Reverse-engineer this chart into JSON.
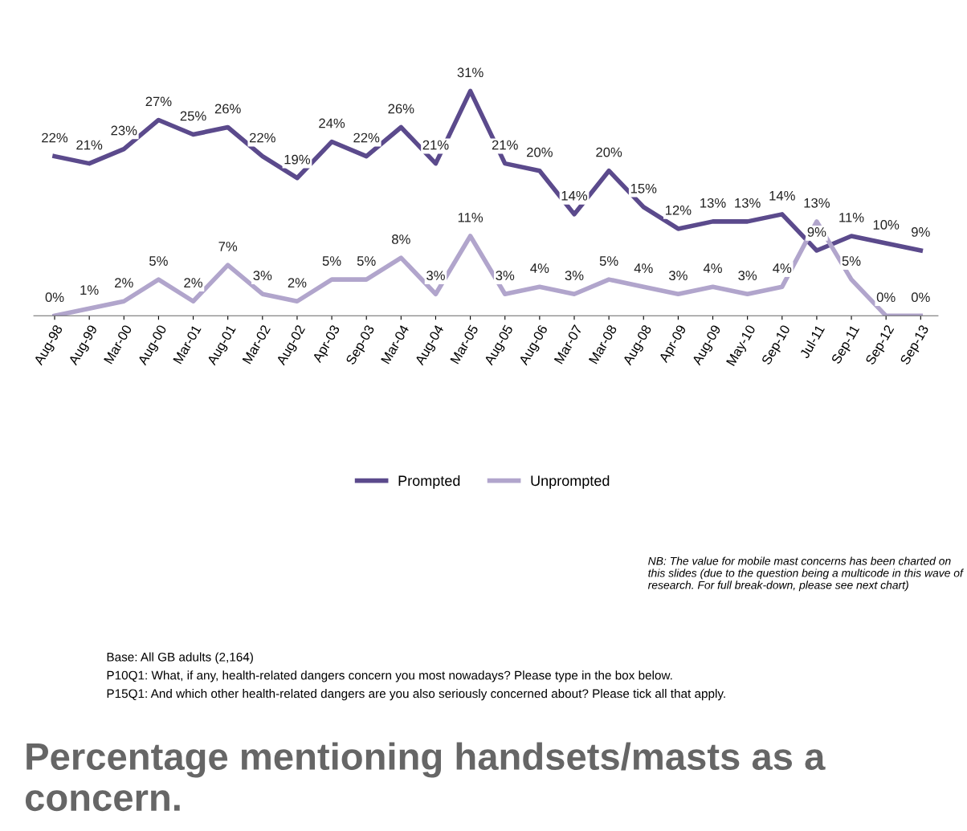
{
  "chart_data": {
    "type": "line",
    "title": "Percentage mentioning handsets/masts as a concern.",
    "categories": [
      "Aug-98",
      "Aug-99",
      "Mar-00",
      "Aug-00",
      "Mar-01",
      "Aug-01",
      "Mar-02",
      "Aug-02",
      "Apr-03",
      "Sep-03",
      "Mar-04",
      "Aug-04",
      "Mar-05",
      "Aug-05",
      "Aug-06",
      "Mar-07",
      "Mar-08",
      "Aug-08",
      "Apr-09",
      "Aug-09",
      "May-10",
      "Sep-10",
      "Jul-11",
      "Sep-11",
      "Sep-12",
      "Sep-13"
    ],
    "series": [
      {
        "name": "Prompted",
        "color": "#5b4a8c",
        "values": [
          22,
          21,
          23,
          27,
          25,
          26,
          22,
          19,
          24,
          22,
          26,
          21,
          31,
          21,
          20,
          14,
          20,
          15,
          12,
          13,
          13,
          14,
          9,
          11,
          10,
          9
        ],
        "value_labels": [
          "22%",
          "21%",
          "23%",
          "27%",
          "25%",
          "26%",
          "22%",
          "19%",
          "24%",
          "22%",
          "26%",
          "21%",
          "31%",
          "21%",
          "20%",
          "14%",
          "20%",
          "15%",
          "12%",
          "13%",
          "13%",
          "14%",
          "9%",
          "11%",
          "10%",
          "9%"
        ]
      },
      {
        "name": "Unprompted",
        "color": "#b1a5cc",
        "values": [
          0,
          1,
          2,
          5,
          2,
          7,
          3,
          2,
          5,
          5,
          8,
          3,
          11,
          3,
          4,
          3,
          5,
          4,
          3,
          4,
          3,
          4,
          13,
          5,
          0,
          0
        ],
        "value_labels": [
          "0%",
          "1%",
          "2%",
          "5%",
          "2%",
          "7%",
          "3%",
          "2%",
          "5%",
          "5%",
          "8%",
          "3%",
          "11%",
          "3%",
          "4%",
          "3%",
          "5%",
          "4%",
          "3%",
          "4%",
          "3%",
          "4%",
          "13%",
          "5%",
          "0%",
          "0%"
        ]
      }
    ],
    "legend": "bottom",
    "grid": false,
    "annotations": [
      "NB: The value for mobile mast concerns has been charted on this slides (due to the question being a multicode in this wave of research. For full break-down, please see next chart)",
      "Base: All GB adults (2,164)",
      "P10Q1: What, if any, health-related dangers concern you most nowadays? Please type in the box below.",
      "P15Q1: And which other health-related dangers are you also seriously concerned about? Please tick all that apply."
    ]
  }
}
